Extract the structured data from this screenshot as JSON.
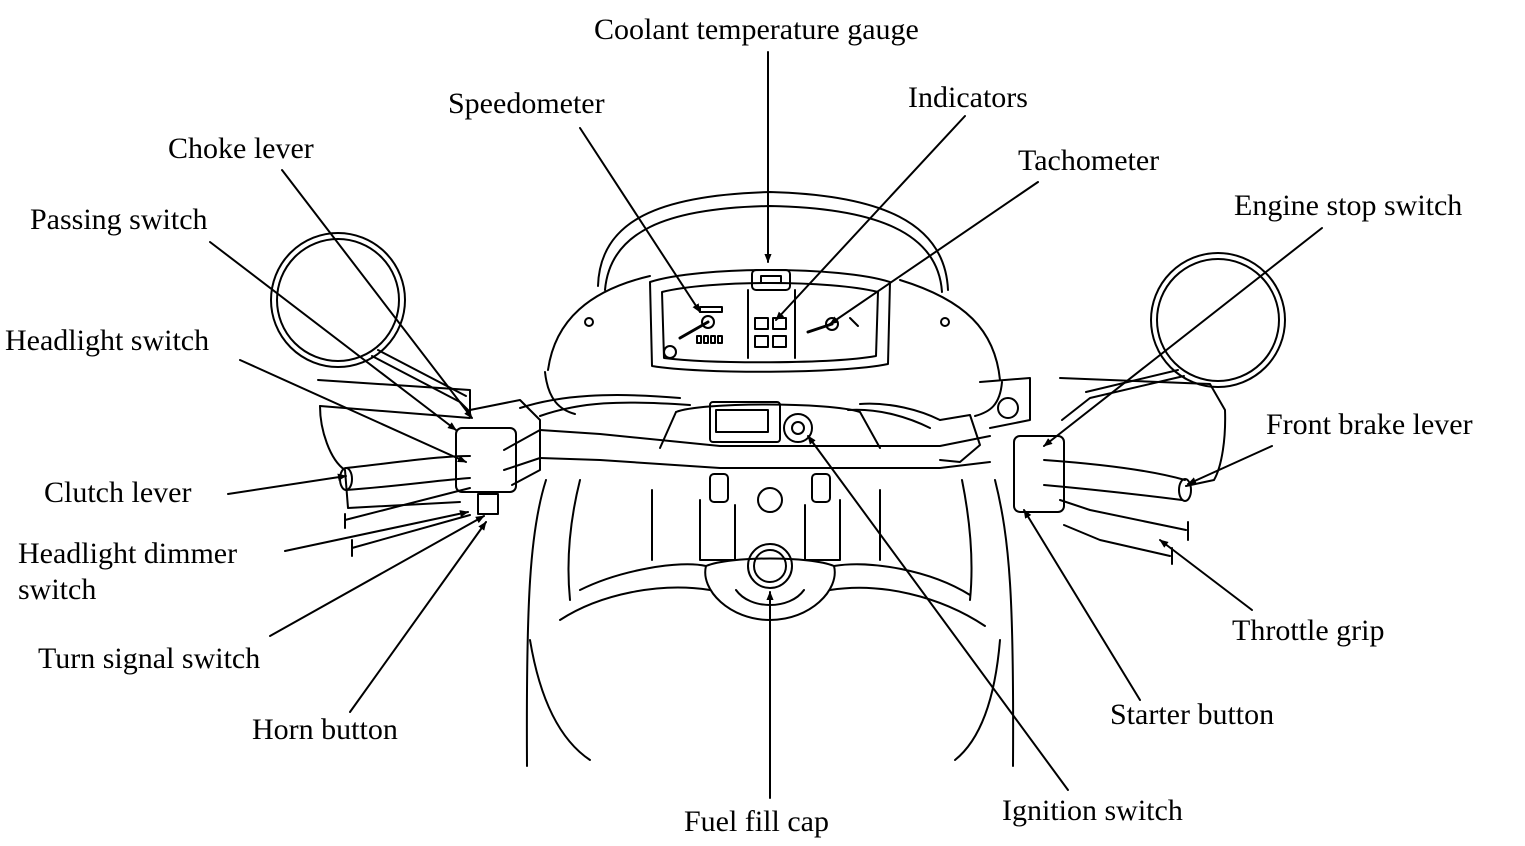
{
  "diagram": {
    "labels": {
      "coolant_temperature_gauge": "Coolant temperature gauge",
      "speedometer": "Speedometer",
      "indicators": "Indicators",
      "tachometer": "Tachometer",
      "choke_lever": "Choke lever",
      "passing_switch": "Passing switch",
      "engine_stop_switch": "Engine stop switch",
      "headlight_switch": "Headlight switch",
      "front_brake_lever": "Front brake lever",
      "clutch_lever": "Clutch lever",
      "headlight_dimmer_switch_line1": "Headlight dimmer",
      "headlight_dimmer_switch_line2": "switch",
      "turn_signal_switch": "Turn signal switch",
      "throttle_grip": "Throttle grip",
      "horn_button": "Horn button",
      "starter_button": "Starter button",
      "fuel_fill_cap": "Fuel fill cap",
      "ignition_switch": "Ignition switch"
    },
    "colors": {
      "ink": "#000000",
      "paper": "#ffffff"
    }
  }
}
